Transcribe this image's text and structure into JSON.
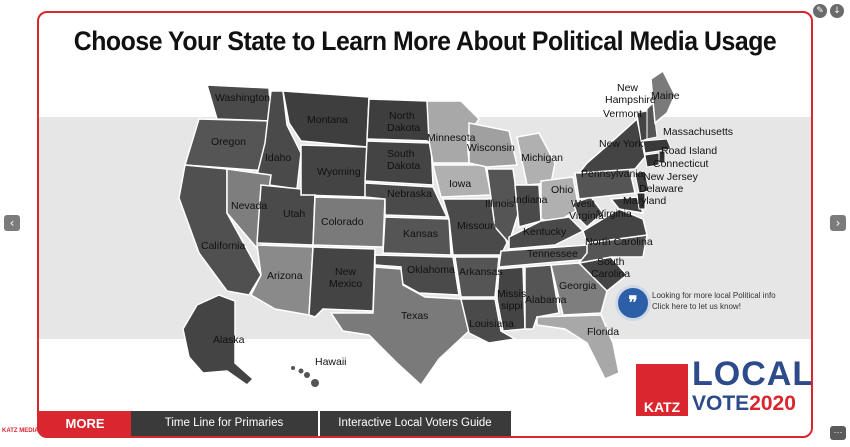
{
  "title": "Choose Your State to Learn More About Political Media Usage",
  "states": {
    "washington": "Washington",
    "oregon": "Oregon",
    "california": "California",
    "idaho": "Idaho",
    "nevada": "Nevada",
    "montana": "Montana",
    "wyoming": "Wyoming",
    "utah": "Utah",
    "arizona": "Arizona",
    "colorado": "Colorado",
    "new_mexico_1": "New",
    "new_mexico_2": "Mexico",
    "north_dakota_1": "North",
    "north_dakota_2": "Dakota",
    "south_dakota_1": "South",
    "south_dakota_2": "Dakota",
    "nebraska": "Nebraska",
    "kansas": "Kansas",
    "oklahoma": "Oklahoma",
    "texas": "Texas",
    "minnesota": "Minnesota",
    "iowa": "Iowa",
    "missouri": "Missouri",
    "arkansas": "Arkansas",
    "louisiana": "Louisiana",
    "wisconsin": "Wisconsin",
    "illinois": "Illinois",
    "michigan": "Michigan",
    "indiana": "Indiana",
    "ohio": "Ohio",
    "kentucky": "Kentucky",
    "tennessee": "Tennessee",
    "mississippi_1": "Missis",
    "mississippi_2": "sippi",
    "alabama": "Alabama",
    "georgia": "Georgia",
    "florida": "Florida",
    "south_carolina_1": "South",
    "south_carolina_2": "Carolina",
    "north_carolina": "North Carolina",
    "virginia": "Virginia",
    "west_virginia_1": "West",
    "west_virginia_2": "Virginia",
    "pennsylvania": "Pennsylvania",
    "new_york": "New York",
    "maine": "Maine",
    "new_hampshire_1": "New",
    "new_hampshire_2": "Hampshire",
    "vermont": "Vermont",
    "massachusetts": "Massachusetts",
    "rhode_island": "Road Island",
    "connecticut": "Connecticut",
    "new_jersey": "New Jersey",
    "delaware": "Delaware",
    "maryland": "Maryland",
    "alaska": "Alaska",
    "hawaii": "Hawaii"
  },
  "info": {
    "line1": "Looking for more local Political info",
    "line2": "Click here to let us know!",
    "icon": "quote-icon"
  },
  "logo": {
    "katz": "KATZ",
    "local": "LOCAL",
    "vote": "VOTE",
    "year": "2020"
  },
  "bottom": {
    "more": "MORE",
    "timeline": "Time Line for Primaries",
    "guide": "Interactive Local Voters Guide"
  },
  "nav": {
    "prev": "‹",
    "next": "›",
    "more_dots": "···",
    "edit_icon": "pencil-icon",
    "download_icon": "download-icon"
  },
  "corner": "KATZ MEDIA"
}
